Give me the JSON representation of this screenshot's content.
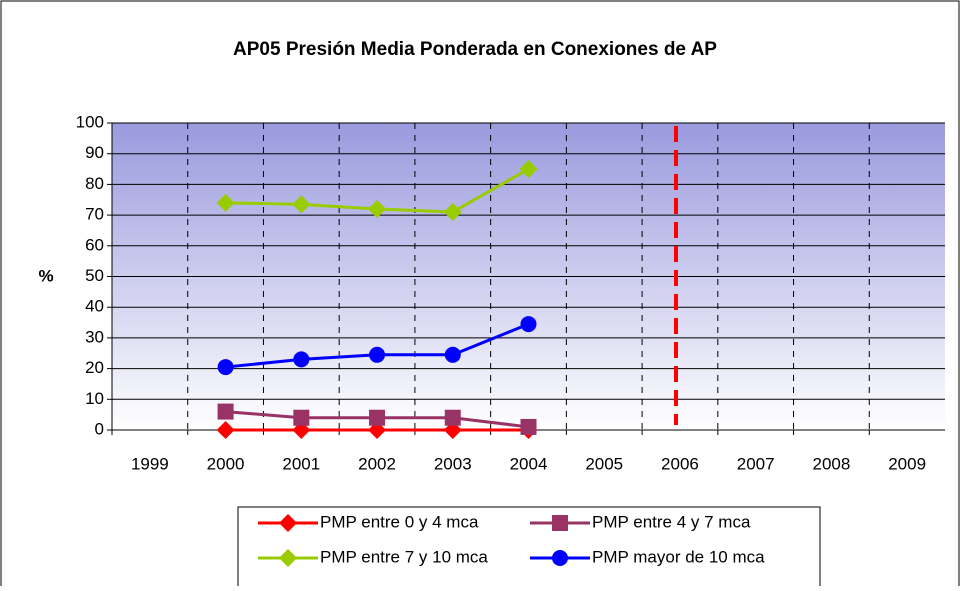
{
  "chart_data": {
    "type": "line",
    "title": "AP05 Presión Media Ponderada en Conexiones de AP",
    "y_label": "%",
    "categories": [
      "1999",
      "2000",
      "2001",
      "2002",
      "2003",
      "2004",
      "2005",
      "2006",
      "2007",
      "2008",
      "2009"
    ],
    "series": [
      {
        "name": "PMP entre 0 y 4 mca",
        "color": "#ff0000",
        "marker": "diamond",
        "values": [
          null,
          0,
          0,
          0,
          0,
          0,
          null,
          null,
          null,
          null,
          null
        ]
      },
      {
        "name": "PMP entre 4 y 7 mca",
        "color": "#993366",
        "marker": "square",
        "values": [
          null,
          6,
          4,
          4,
          4,
          1,
          null,
          null,
          null,
          null,
          null
        ]
      },
      {
        "name": "PMP entre 7 y 10 mca",
        "color": "#99cc00",
        "marker": "diamond",
        "values": [
          null,
          74,
          73.5,
          72,
          71,
          85,
          null,
          null,
          null,
          null,
          null
        ]
      },
      {
        "name": "PMP mayor de 10 mca",
        "color": "#0000ff",
        "marker": "circle",
        "values": [
          null,
          20.5,
          23,
          24.5,
          24.5,
          34.5,
          null,
          null,
          null,
          null,
          null
        ]
      }
    ],
    "ylim": [
      0,
      100
    ],
    "yticks": [
      0,
      10,
      20,
      30,
      40,
      50,
      60,
      70,
      80,
      90,
      100
    ],
    "grid": true,
    "legend": "bottom"
  }
}
